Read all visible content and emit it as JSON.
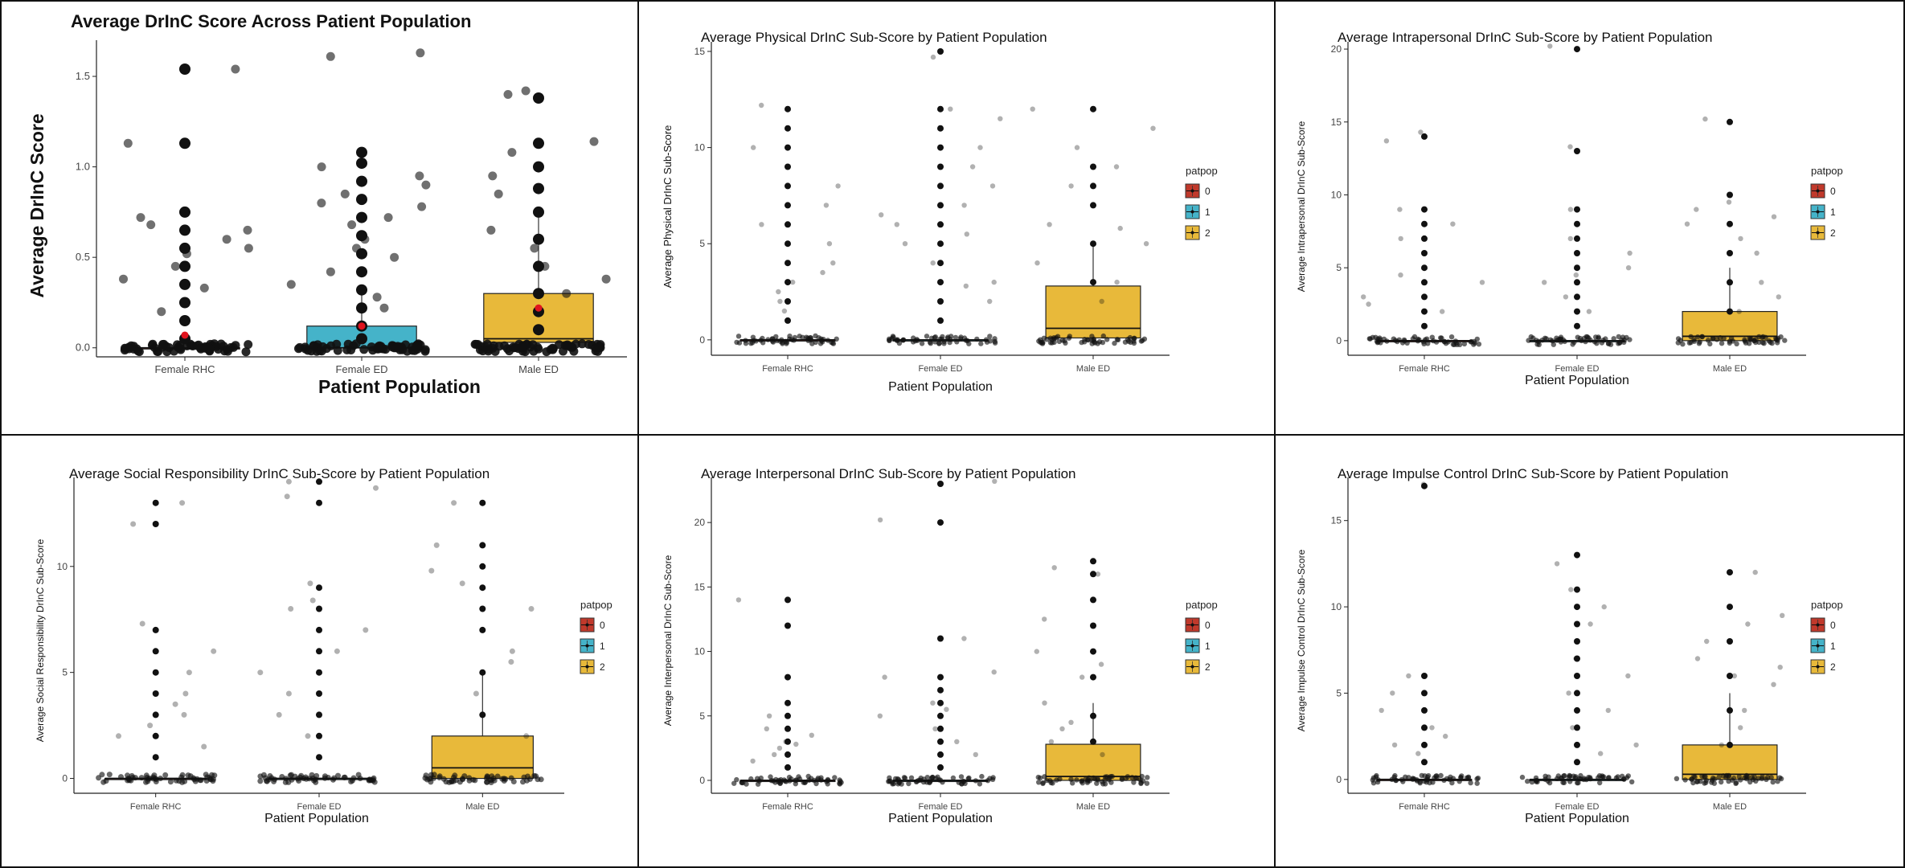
{
  "colors": {
    "group_0": "#c0392b",
    "group_1": "#45b3c9",
    "group_2": "#e8b93a",
    "point": "#111111",
    "mean": "#e0141e"
  },
  "chart_data": [
    {
      "id": "overall",
      "type": "box",
      "title": "Average DrInC Score Across Patient Population",
      "xlabel": "Patient Population",
      "ylabel": "Average DrInC Score",
      "categories": [
        "Female RHC",
        "Female ED",
        "Male ED"
      ],
      "y_ticks": [
        "0.0",
        "0.5",
        "1.0",
        "1.5"
      ],
      "ylim": [
        -0.05,
        1.7
      ],
      "legend": null,
      "box_colors": [
        "#c0392b",
        "#45b3c9",
        "#e8b93a"
      ],
      "boxes": [
        {
          "group": "0",
          "q1": 0,
          "median": 0,
          "q3": 0,
          "whisker_high": 0,
          "mean": 0.07
        },
        {
          "group": "1",
          "q1": 0,
          "median": 0,
          "q3": 0.12,
          "whisker_high": 0.3,
          "mean": 0.12
        },
        {
          "group": "2",
          "q1": 0.03,
          "median": 0.05,
          "q3": 0.3,
          "whisker_high": 0.72,
          "mean": 0.22
        }
      ],
      "stacks": [
        [
          0.05,
          0.15,
          0.25,
          0.35,
          0.45,
          0.55,
          0.65,
          0.75,
          1.13,
          1.54
        ],
        [
          0.05,
          0.12,
          0.22,
          0.32,
          0.42,
          0.52,
          0.62,
          0.72,
          0.82,
          0.92,
          1.02,
          1.08
        ],
        [
          0.1,
          0.2,
          0.3,
          0.45,
          0.6,
          0.75,
          0.88,
          1.0,
          1.13,
          1.38
        ]
      ],
      "outliers": [
        [
          0.55,
          0.52,
          0.68,
          0.6,
          0.72,
          0.65,
          1.13,
          1.54,
          0.38,
          0.2,
          0.33,
          0.45
        ],
        [
          0.85,
          0.78,
          0.68,
          0.6,
          0.55,
          1.61,
          1.63,
          1.0,
          0.9,
          0.8,
          0.72,
          0.5,
          0.42,
          0.35,
          0.28,
          0.22,
          0.95
        ],
        [
          1.42,
          1.14,
          1.08,
          0.95,
          0.85,
          0.65,
          0.55,
          0.45,
          1.4,
          0.38,
          0.3
        ]
      ],
      "zero_count": 60
    },
    {
      "id": "physical",
      "type": "box",
      "title": "Average Physical DrInC Sub-Score by Patient Population",
      "xlabel": "Patient Population",
      "ylabel": "Average Physical DrInC Sub-Score",
      "categories": [
        "Female RHC",
        "Female ED",
        "Male ED"
      ],
      "y_ticks": [
        "0",
        "5",
        "10",
        "15"
      ],
      "ylim": [
        -0.8,
        15.5
      ],
      "legend": {
        "title": "patpop",
        "entries": [
          "0",
          "1",
          "2"
        ]
      },
      "box_colors": [
        "#c0392b",
        "#45b3c9",
        "#e8b93a"
      ],
      "boxes": [
        {
          "group": "0",
          "q1": 0,
          "median": 0,
          "q3": 0,
          "whisker_high": 0,
          "mean": null
        },
        {
          "group": "1",
          "q1": 0,
          "median": 0,
          "q3": 0,
          "whisker_high": 0,
          "mean": null
        },
        {
          "group": "2",
          "q1": 0.1,
          "median": 0.6,
          "q3": 2.8,
          "whisker_high": 5.0,
          "mean": null
        }
      ],
      "stacks": [
        [
          1,
          2,
          3,
          4,
          5,
          6,
          7,
          8,
          9,
          10,
          11,
          12
        ],
        [
          1,
          2,
          3,
          4,
          5,
          6,
          7,
          8,
          9,
          10,
          11,
          12,
          15
        ],
        [
          3,
          5,
          7,
          8,
          9,
          12
        ]
      ],
      "outliers": [
        [
          8,
          12.2,
          10,
          6,
          4,
          3,
          2,
          5,
          7,
          2.5,
          3.5,
          1.5
        ],
        [
          14.7,
          12,
          11.5,
          10,
          9,
          8,
          7,
          6,
          5.5,
          5,
          4,
          3,
          2,
          6.5,
          2.8
        ],
        [
          12,
          11,
          10,
          9,
          8,
          6,
          5.8,
          5,
          4,
          3,
          2
        ]
      ],
      "zero_count": 55
    },
    {
      "id": "intrapersonal",
      "type": "box",
      "title": "Average Intrapersonal DrInC Sub-Score by Patient Population",
      "xlabel": "Patient Population",
      "ylabel": "Average Intrapersonal DrInC Sub-Score",
      "categories": [
        "Female RHC",
        "Female ED",
        "Male ED"
      ],
      "y_ticks": [
        "0",
        "5",
        "10",
        "15",
        "20"
      ],
      "ylim": [
        -1,
        20.5
      ],
      "legend": {
        "title": "patpop",
        "entries": [
          "0",
          "1",
          "2"
        ]
      },
      "box_colors": [
        "#c0392b",
        "#45b3c9",
        "#e8b93a"
      ],
      "boxes": [
        {
          "group": "0",
          "q1": 0,
          "median": 0,
          "q3": 0,
          "whisker_high": 0,
          "mean": null
        },
        {
          "group": "1",
          "q1": 0,
          "median": 0,
          "q3": 0,
          "whisker_high": 0,
          "mean": null
        },
        {
          "group": "2",
          "q1": 0,
          "median": 0.3,
          "q3": 2.0,
          "whisker_high": 5.0,
          "mean": null
        }
      ],
      "stacks": [
        [
          1,
          2,
          3,
          4,
          5,
          6,
          7,
          8,
          9,
          14
        ],
        [
          1,
          2,
          3,
          4,
          5,
          6,
          7,
          8,
          9,
          13,
          20
        ],
        [
          2,
          4,
          6,
          8,
          10,
          15
        ]
      ],
      "outliers": [
        [
          7,
          4.5,
          4,
          3,
          2.5,
          14.3,
          13.7,
          9,
          8,
          2
        ],
        [
          9,
          8,
          7,
          6,
          5,
          4,
          3,
          2,
          13.3,
          20.2,
          4.5
        ],
        [
          9.5,
          9,
          8,
          7,
          10,
          15.2,
          8.5,
          6,
          4,
          3,
          2
        ]
      ],
      "zero_count": 55
    },
    {
      "id": "social",
      "type": "box",
      "title": "Average Social Responsibility DrInC Sub-Score by Patient Population",
      "xlabel": "Patient Population",
      "ylabel": "Average Social Responsibility DrInC Sub-Score",
      "categories": [
        "Female RHC",
        "Female ED",
        "Male ED"
      ],
      "y_ticks": [
        "0",
        "5",
        "10"
      ],
      "ylim": [
        -0.7,
        14.2
      ],
      "legend": {
        "title": "patpop",
        "entries": [
          "0",
          "1",
          "2"
        ]
      },
      "box_colors": [
        "#c0392b",
        "#45b3c9",
        "#e8b93a"
      ],
      "boxes": [
        {
          "group": "0",
          "q1": 0,
          "median": 0,
          "q3": 0,
          "whisker_high": 0,
          "mean": null
        },
        {
          "group": "1",
          "q1": 0,
          "median": 0,
          "q3": 0,
          "whisker_high": 0,
          "mean": null
        },
        {
          "group": "2",
          "q1": 0,
          "median": 0.5,
          "q3": 2.0,
          "whisker_high": 5.0,
          "mean": null
        }
      ],
      "stacks": [
        [
          1,
          2,
          3,
          4,
          5,
          6,
          7,
          12,
          13
        ],
        [
          1,
          2,
          3,
          4,
          5,
          6,
          7,
          8,
          9,
          13,
          14
        ],
        [
          3,
          5,
          7,
          8,
          9,
          10,
          11,
          13
        ]
      ],
      "outliers": [
        [
          13,
          12,
          4,
          3,
          2,
          7.3,
          6,
          5,
          3.5,
          1.5,
          2.5
        ],
        [
          13.3,
          8.4,
          8,
          7,
          6,
          5,
          4,
          3,
          2,
          14,
          13.7,
          9.2
        ],
        [
          13,
          9.2,
          8,
          6,
          5.5,
          4,
          11,
          9.8,
          2
        ]
      ],
      "zero_count": 55
    },
    {
      "id": "interpersonal",
      "type": "box",
      "title": "Average Interpersonal DrInC Sub-Score by Patient Population",
      "xlabel": "Patient Population",
      "ylabel": "Average Interpersonal DrInC Sub-Score",
      "categories": [
        "Female RHC",
        "Female ED",
        "Male ED"
      ],
      "y_ticks": [
        "0",
        "5",
        "10",
        "15",
        "20"
      ],
      "ylim": [
        -1,
        23.5
      ],
      "legend": {
        "title": "patpop",
        "entries": [
          "0",
          "1",
          "2"
        ]
      },
      "box_colors": [
        "#c0392b",
        "#45b3c9",
        "#e8b93a"
      ],
      "boxes": [
        {
          "group": "0",
          "q1": 0,
          "median": 0,
          "q3": 0,
          "whisker_high": 0,
          "mean": null
        },
        {
          "group": "1",
          "q1": 0,
          "median": 0,
          "q3": 0,
          "whisker_high": 0,
          "mean": null
        },
        {
          "group": "2",
          "q1": 0,
          "median": 0.3,
          "q3": 2.8,
          "whisker_high": 6.0,
          "mean": null
        }
      ],
      "stacks": [
        [
          1,
          2,
          3,
          4,
          5,
          6,
          8,
          12,
          14
        ],
        [
          1,
          2,
          3,
          4,
          5,
          6,
          7,
          8,
          11,
          20,
          23
        ],
        [
          3,
          5,
          8,
          10,
          12,
          14,
          16,
          17
        ]
      ],
      "outliers": [
        [
          14,
          5,
          3,
          2.5,
          2,
          4,
          3.5,
          1.5,
          2.8
        ],
        [
          20.2,
          6,
          5,
          4,
          3,
          2,
          8,
          11,
          8.4,
          23.2,
          5.5
        ],
        [
          12.5,
          10,
          9,
          8,
          6,
          4,
          3,
          2,
          16.5,
          16,
          4.5
        ]
      ],
      "zero_count": 55
    },
    {
      "id": "impulse",
      "type": "box",
      "title": "Average Impulse Control DrInC Sub-Score by Patient Population",
      "xlabel": "Patient Population",
      "ylabel": "Average Impulse Control DrInC Sub-Score",
      "categories": [
        "Female RHC",
        "Female ED",
        "Male ED"
      ],
      "y_ticks": [
        "0",
        "5",
        "10",
        "15"
      ],
      "ylim": [
        -0.8,
        17.5
      ],
      "legend": {
        "title": "patpop",
        "entries": [
          "0",
          "1",
          "2"
        ]
      },
      "box_colors": [
        "#c0392b",
        "#45b3c9",
        "#e8b93a"
      ],
      "boxes": [
        {
          "group": "0",
          "q1": 0,
          "median": 0,
          "q3": 0,
          "whisker_high": 0,
          "mean": null
        },
        {
          "group": "1",
          "q1": 0,
          "median": 0,
          "q3": 0,
          "whisker_high": 0,
          "mean": null
        },
        {
          "group": "2",
          "q1": 0,
          "median": 0.3,
          "q3": 2.0,
          "whisker_high": 5.0,
          "mean": null
        }
      ],
      "stacks": [
        [
          1,
          2,
          3,
          4,
          5,
          6,
          17
        ],
        [
          1,
          2,
          3,
          4,
          5,
          6,
          7,
          8,
          9,
          10,
          11,
          13
        ],
        [
          2,
          4,
          6,
          8,
          10,
          12
        ]
      ],
      "outliers": [
        [
          17.1,
          6,
          5,
          4,
          3,
          2,
          1.5,
          2.5
        ],
        [
          7,
          6,
          5,
          4,
          3,
          2,
          10,
          11,
          12.5,
          9,
          1.5
        ],
        [
          12,
          9,
          8,
          7,
          6,
          5.5,
          4,
          3,
          2,
          6.5,
          9.5
        ]
      ],
      "zero_count": 55
    }
  ]
}
